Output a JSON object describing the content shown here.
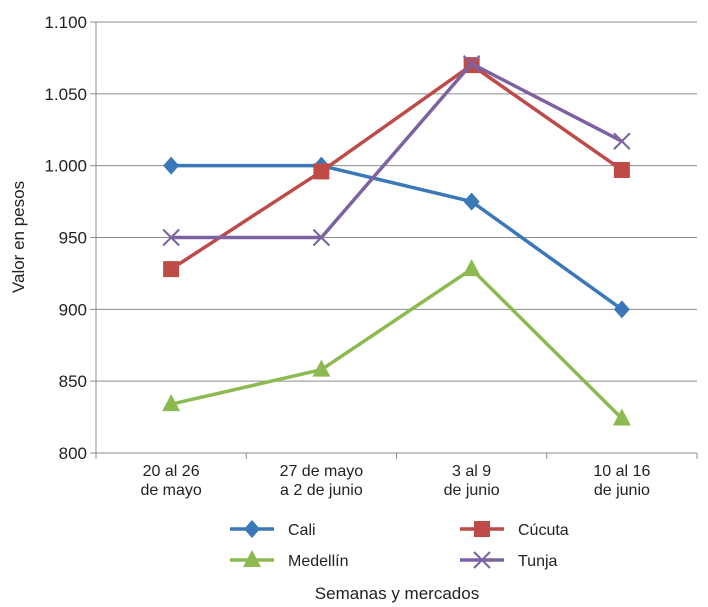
{
  "chart_data": {
    "type": "line",
    "title": "",
    "xlabel": "Semanas y mercados",
    "ylabel": "Valor en pesos",
    "categories": [
      [
        "20 al 26",
        "de mayo"
      ],
      [
        "27 de mayo",
        "a 2 de junio"
      ],
      [
        "3 al 9",
        "de junio"
      ],
      [
        "10 al 16",
        "de junio"
      ]
    ],
    "y_ticks": [
      800,
      850,
      900,
      950,
      1000,
      1050,
      1100
    ],
    "y_tick_labels": [
      "800",
      "850",
      "900",
      "950",
      "1.000",
      "1.050",
      "1.100"
    ],
    "ylim": [
      800,
      1100
    ],
    "grid": true,
    "legend_position": "bottom",
    "series": [
      {
        "name": "Cali",
        "values": [
          1000,
          1000,
          975,
          900
        ],
        "color": "#3A78B8",
        "marker": "diamond"
      },
      {
        "name": "Cúcuta",
        "values": [
          928,
          996,
          1070,
          997
        ],
        "color": "#BE4B48",
        "marker": "square"
      },
      {
        "name": "Medellín",
        "values": [
          834,
          858,
          928,
          824
        ],
        "color": "#8DB951",
        "marker": "triangle"
      },
      {
        "name": "Tunja",
        "values": [
          950,
          950,
          1071,
          1017
        ],
        "color": "#7D62A1",
        "marker": "x"
      }
    ]
  }
}
